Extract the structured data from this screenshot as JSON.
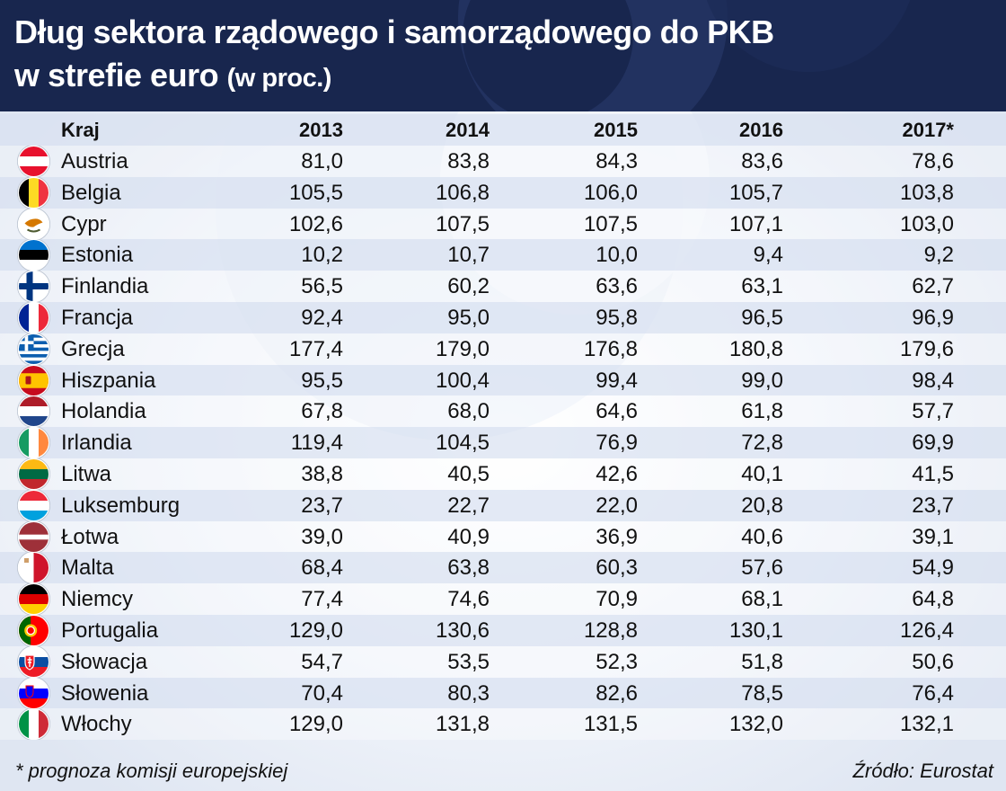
{
  "header": {
    "title_line1": "Dług sektora rządowego i samorządowego do PKB",
    "title_line2": "w strefie euro",
    "title_unit": "(w proc.)"
  },
  "chart_data": {
    "type": "table",
    "columns": [
      "Kraj",
      "2013",
      "2014",
      "2015",
      "2016",
      "2017*"
    ],
    "rows": [
      {
        "country": "Austria",
        "flag": "austria-flag",
        "values": [
          "81,0",
          "83,8",
          "84,3",
          "83,6",
          "78,6"
        ]
      },
      {
        "country": "Belgia",
        "flag": "belgium-flag",
        "values": [
          "105,5",
          "106,8",
          "106,0",
          "105,7",
          "103,8"
        ]
      },
      {
        "country": "Cypr",
        "flag": "cyprus-flag",
        "values": [
          "102,6",
          "107,5",
          "107,5",
          "107,1",
          "103,0"
        ]
      },
      {
        "country": "Estonia",
        "flag": "estonia-flag",
        "values": [
          "10,2",
          "10,7",
          "10,0",
          "9,4",
          "9,2"
        ]
      },
      {
        "country": "Finlandia",
        "flag": "finland-flag",
        "values": [
          "56,5",
          "60,2",
          "63,6",
          "63,1",
          "62,7"
        ]
      },
      {
        "country": "Francja",
        "flag": "france-flag",
        "values": [
          "92,4",
          "95,0",
          "95,8",
          "96,5",
          "96,9"
        ]
      },
      {
        "country": "Grecja",
        "flag": "greece-flag",
        "values": [
          "177,4",
          "179,0",
          "176,8",
          "180,8",
          "179,6"
        ]
      },
      {
        "country": "Hiszpania",
        "flag": "spain-flag",
        "values": [
          "95,5",
          "100,4",
          "99,4",
          "99,0",
          "98,4"
        ]
      },
      {
        "country": "Holandia",
        "flag": "netherlands-flag",
        "values": [
          "67,8",
          "68,0",
          "64,6",
          "61,8",
          "57,7"
        ]
      },
      {
        "country": "Irlandia",
        "flag": "ireland-flag",
        "values": [
          "119,4",
          "104,5",
          "76,9",
          "72,8",
          "69,9"
        ]
      },
      {
        "country": "Litwa",
        "flag": "lithuania-flag",
        "values": [
          "38,8",
          "40,5",
          "42,6",
          "40,1",
          "41,5"
        ]
      },
      {
        "country": "Luksemburg",
        "flag": "luxembourg-flag",
        "values": [
          "23,7",
          "22,7",
          "22,0",
          "20,8",
          "23,7"
        ]
      },
      {
        "country": "Łotwa",
        "flag": "latvia-flag",
        "values": [
          "39,0",
          "40,9",
          "36,9",
          "40,6",
          "39,1"
        ]
      },
      {
        "country": "Malta",
        "flag": "malta-flag",
        "values": [
          "68,4",
          "63,8",
          "60,3",
          "57,6",
          "54,9"
        ]
      },
      {
        "country": "Niemcy",
        "flag": "germany-flag",
        "values": [
          "77,4",
          "74,6",
          "70,9",
          "68,1",
          "64,8"
        ]
      },
      {
        "country": "Portugalia",
        "flag": "portugal-flag",
        "values": [
          "129,0",
          "130,6",
          "128,8",
          "130,1",
          "126,4"
        ]
      },
      {
        "country": "Słowacja",
        "flag": "slovakia-flag",
        "values": [
          "54,7",
          "53,5",
          "52,3",
          "51,8",
          "50,6"
        ]
      },
      {
        "country": "Słowenia",
        "flag": "slovenia-flag",
        "values": [
          "70,4",
          "80,3",
          "82,6",
          "78,5",
          "76,4"
        ]
      },
      {
        "country": "Włochy",
        "flag": "italy-flag",
        "values": [
          "129,0",
          "131,8",
          "131,5",
          "132,0",
          "132,1"
        ]
      }
    ]
  },
  "footer": {
    "note": "* prognoza komisji europejskiej",
    "source": "Źródło: Eurostat"
  },
  "colors": {
    "header_bg": "#18264e",
    "row_alt": "#d9e2f1"
  }
}
